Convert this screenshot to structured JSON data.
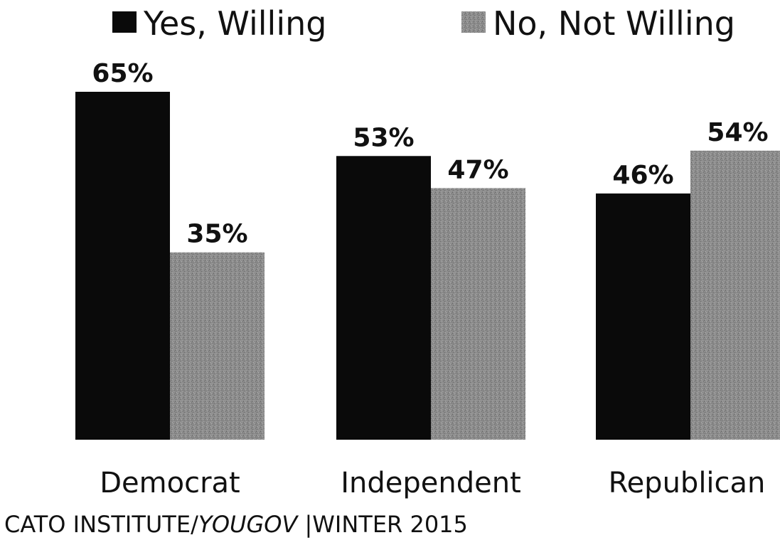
{
  "chart_data": {
    "type": "bar",
    "categories": [
      "Democrat",
      "Independent",
      "Republican"
    ],
    "series": [
      {
        "name": "Yes, Willing",
        "values": [
          65,
          53,
          46
        ],
        "labels": [
          "65%",
          "53%",
          "46%"
        ],
        "color": "#0a0a0a"
      },
      {
        "name": "No, Not Willing",
        "values": [
          35,
          47,
          54
        ],
        "labels": [
          "35%",
          "47%",
          "54%"
        ],
        "color": "#8a8a8a"
      }
    ],
    "ylim": [
      0,
      65
    ],
    "grid": false,
    "legend_position": "top"
  },
  "source": {
    "org": "CATO INSTITUTE/",
    "partner": "YOUGOV",
    "separator": " |",
    "date": "WINTER 2015"
  }
}
